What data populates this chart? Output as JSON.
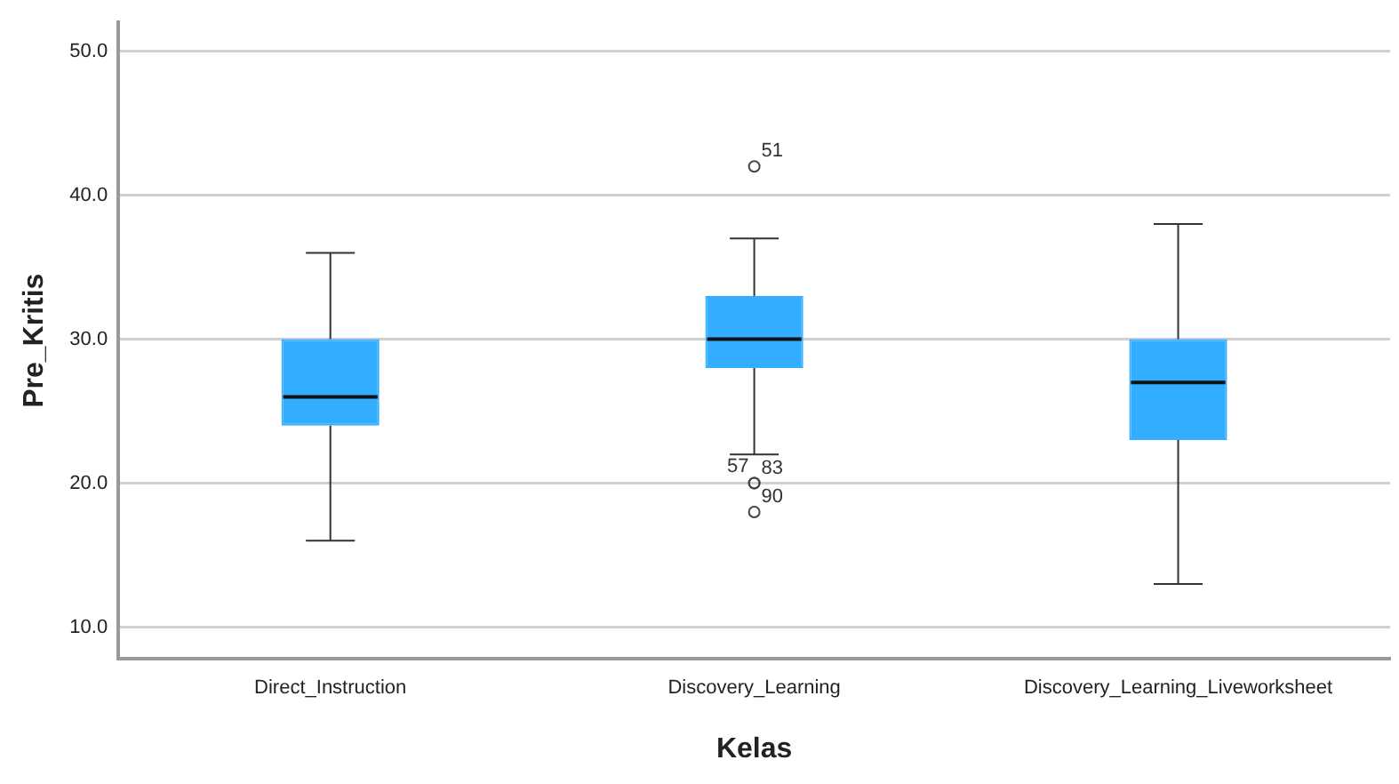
{
  "chart_data": {
    "type": "box",
    "xlabel": "Kelas",
    "ylabel": "Pre_Kritis",
    "categories": [
      "Direct_Instruction",
      "Discovery_Learning",
      "Discovery_Learning_Liveworksheet"
    ],
    "color": "#33adff",
    "boxes": [
      {
        "low": 16,
        "q1": 24,
        "median": 26,
        "q3": 30,
        "high": 36
      },
      {
        "low": 22,
        "q1": 28,
        "median": 30,
        "q3": 33,
        "high": 37,
        "outliers": [
          42,
          20,
          20,
          18
        ]
      },
      {
        "low": 13,
        "q1": 23,
        "median": 27,
        "q3": 30,
        "high": 38
      }
    ],
    "ylim": [
      7.8,
      52
    ],
    "yticks": [
      {
        "value": 10,
        "label": "10.0"
      },
      {
        "value": 20,
        "label": "20.0"
      },
      {
        "value": 30,
        "label": "30.0"
      },
      {
        "value": 40,
        "label": "40.0"
      },
      {
        "value": 50,
        "label": "50.0"
      }
    ],
    "grid": "y",
    "legend": false,
    "annotations": [
      "51",
      "57",
      "83",
      "90"
    ]
  }
}
